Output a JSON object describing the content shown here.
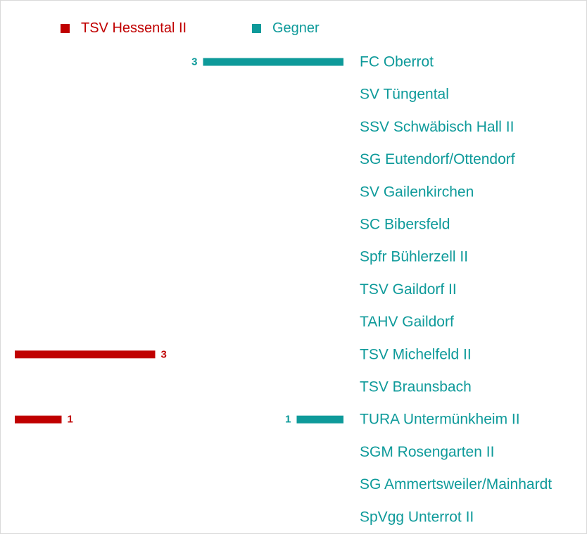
{
  "colors": {
    "home": "#c00000",
    "away": "#0e9a9a"
  },
  "chart_data": {
    "type": "bar",
    "orientation": "horizontal",
    "legend_position": "top",
    "series": [
      {
        "name": "TSV Hessental II",
        "values": [
          0,
          0,
          0,
          0,
          0,
          0,
          0,
          0,
          0,
          3,
          0,
          1,
          0,
          0,
          0
        ]
      },
      {
        "name": "Gegner",
        "values": [
          3,
          0,
          0,
          0,
          0,
          0,
          0,
          0,
          0,
          0,
          0,
          1,
          0,
          0,
          0
        ]
      }
    ],
    "categories": [
      "FC Oberrot",
      "SV Tüngental",
      "SSV Schwäbisch Hall II",
      "SG Eutendorf/Ottendorf",
      "SV Gailenkirchen",
      "SC Bibersfeld",
      "Spfr Bühlerzell II",
      "TSV Gaildorf II",
      "TAHV Gaildorf",
      "TSV Michelfeld II",
      "TSV Braunsbach",
      "TURA Untermünkheim II",
      "SGM Rosengarten II",
      "SG Ammertsweiler/Mainhardt",
      "SpVgg Unterrot II"
    ]
  }
}
